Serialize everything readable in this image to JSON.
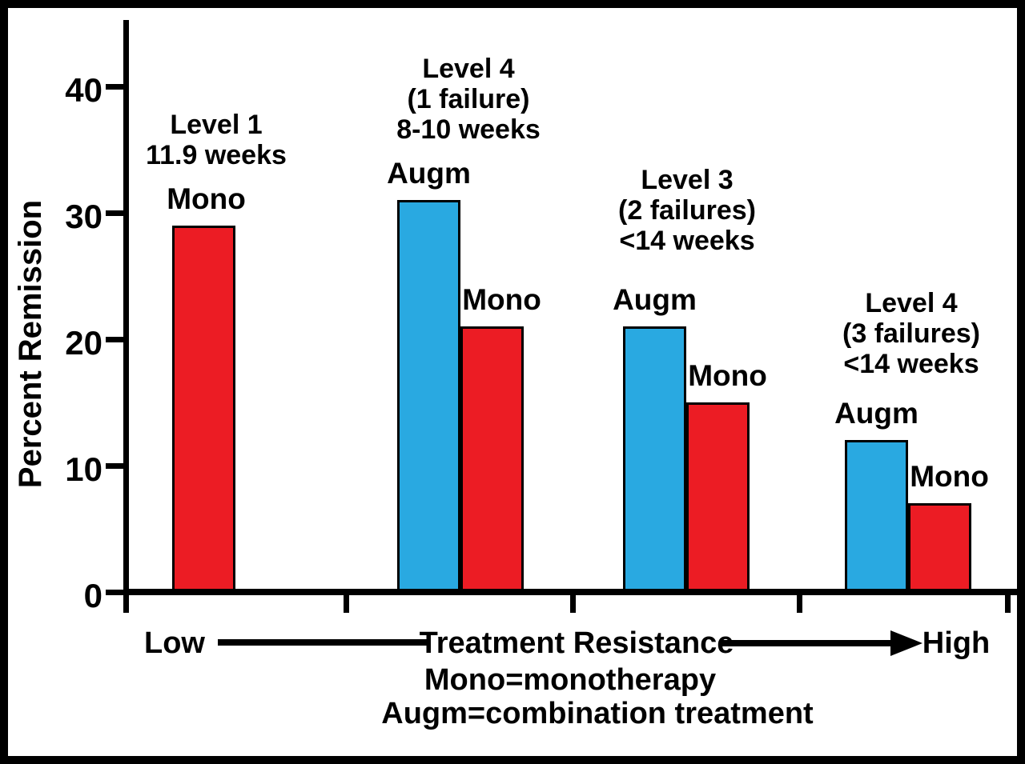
{
  "chart_data": {
    "type": "bar",
    "title": "",
    "ylabel": "Percent Remission",
    "ylim": [
      0,
      45
    ],
    "yticks": [
      0,
      10,
      20,
      30,
      40
    ],
    "x_direction": {
      "left": "Low",
      "center": "Treatment Resistance",
      "right": "High"
    },
    "legend_notes": [
      "Mono=monotherapy",
      "Augm=combination treatment"
    ],
    "colors": {
      "Mono": "#EC1C24",
      "Augm": "#29A9E1",
      "axis": "#000000",
      "background": "#FFFFFF"
    },
    "groups": [
      {
        "header": [
          "Level 1",
          "11.9 weeks"
        ],
        "bars": [
          {
            "series": "Mono",
            "value": 29
          }
        ]
      },
      {
        "header": [
          "Level 4",
          "(1 failure)",
          "8-10 weeks"
        ],
        "bars": [
          {
            "series": "Augm",
            "value": 31
          },
          {
            "series": "Mono",
            "value": 21
          }
        ]
      },
      {
        "header": [
          "Level 3",
          "(2 failures)",
          "<14 weeks"
        ],
        "bars": [
          {
            "series": "Augm",
            "value": 21
          },
          {
            "series": "Mono",
            "value": 15
          }
        ]
      },
      {
        "header": [
          "Level 4",
          "(3 failures)",
          "<14 weeks"
        ],
        "bars": [
          {
            "series": "Augm",
            "value": 12
          },
          {
            "series": "Mono",
            "value": 7
          }
        ]
      }
    ]
  }
}
